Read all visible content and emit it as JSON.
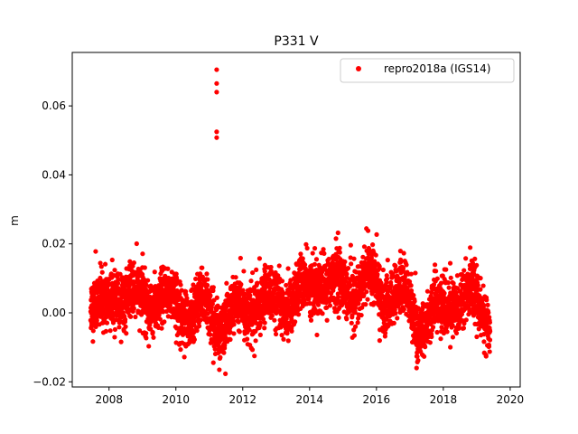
{
  "chart_data": {
    "type": "scatter",
    "title": "P331 V",
    "xlabel": "",
    "ylabel": "m",
    "xlim": [
      2006.9,
      2020.3
    ],
    "ylim": [
      -0.0215,
      0.0755
    ],
    "xticks": [
      2008,
      2010,
      2012,
      2014,
      2016,
      2018,
      2020
    ],
    "yticks": [
      -0.02,
      0.0,
      0.02,
      0.04,
      0.06
    ],
    "ytick_labels": [
      "−0.02",
      "0.00",
      "0.02",
      "0.04",
      "0.06"
    ],
    "grid": false,
    "legend_position": "top-right",
    "series": [
      {
        "name": "repro2018a (IGS14)",
        "color": "#ff0000",
        "marker": "circle",
        "x_start": 2007.45,
        "x_end": 2019.4,
        "mean_trend": [
          [
            2007.45,
            0.002
          ],
          [
            2007.8,
            0.004
          ],
          [
            2008.3,
            0.003
          ],
          [
            2008.8,
            0.007
          ],
          [
            2009.3,
            0.001
          ],
          [
            2009.8,
            0.006
          ],
          [
            2010.3,
            -0.002
          ],
          [
            2010.8,
            0.004
          ],
          [
            2011.3,
            -0.005
          ],
          [
            2011.8,
            0.003
          ],
          [
            2012.3,
            0.0
          ],
          [
            2012.8,
            0.006
          ],
          [
            2013.3,
            0.0
          ],
          [
            2013.8,
            0.009
          ],
          [
            2014.3,
            0.007
          ],
          [
            2014.8,
            0.011
          ],
          [
            2015.3,
            0.004
          ],
          [
            2015.8,
            0.012
          ],
          [
            2016.3,
            0.002
          ],
          [
            2016.8,
            0.008
          ],
          [
            2017.3,
            -0.006
          ],
          [
            2017.8,
            0.003
          ],
          [
            2018.3,
            0.001
          ],
          [
            2018.8,
            0.007
          ],
          [
            2019.4,
            -0.004
          ]
        ],
        "scatter_sd": 0.004,
        "outliers": [
          [
            2011.22,
            0.0705
          ],
          [
            2011.22,
            0.0665
          ],
          [
            2011.22,
            0.064
          ],
          [
            2011.22,
            0.0525
          ],
          [
            2011.22,
            0.0508
          ],
          [
            2011.3,
            -0.0165
          ],
          [
            2014.85,
            0.0232
          ],
          [
            2015.75,
            0.0238
          ],
          [
            2007.6,
            0.0178
          ],
          [
            2017.2,
            -0.016
          ],
          [
            2012.35,
            -0.0125
          ]
        ]
      }
    ]
  }
}
